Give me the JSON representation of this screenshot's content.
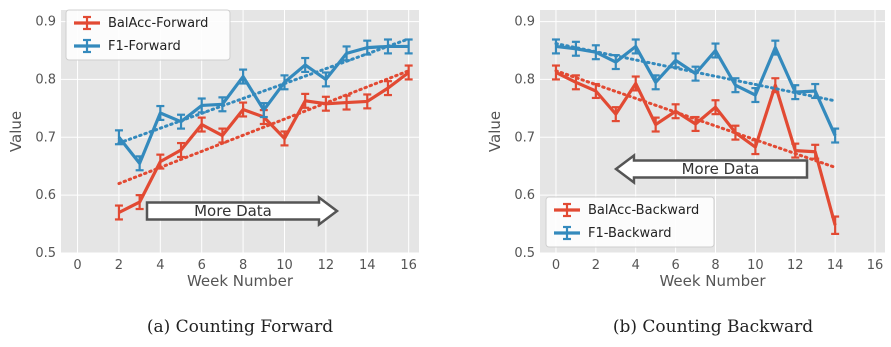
{
  "colors": {
    "red": "#e24a33",
    "blue": "#348abd",
    "panel_bg": "#e5e5e5",
    "grid": "#ffffff"
  },
  "chart_data": [
    {
      "type": "line",
      "caption": "(a) Counting Forward",
      "xlabel": "Week Number",
      "ylabel": "Value",
      "xlim": [
        -0.8,
        16.5
      ],
      "ylim": [
        0.5,
        0.92
      ],
      "xticks": [
        0,
        2,
        4,
        6,
        8,
        10,
        12,
        14,
        16
      ],
      "yticks": [
        0.5,
        0.6,
        0.7,
        0.8,
        0.9
      ],
      "grid": true,
      "legend_position": "top-left",
      "annotation": {
        "text": "More Data",
        "direction": "right"
      },
      "series": [
        {
          "name": "BalAcc-Forward",
          "color": "red",
          "x": [
            2,
            3,
            4,
            5,
            6,
            7,
            8,
            9,
            10,
            11,
            12,
            13,
            14,
            15,
            16
          ],
          "values": [
            0.57,
            0.588,
            0.658,
            0.678,
            0.722,
            0.703,
            0.748,
            0.735,
            0.698,
            0.763,
            0.758,
            0.76,
            0.762,
            0.785,
            0.812
          ],
          "error": [
            0.012,
            0.012,
            0.012,
            0.012,
            0.012,
            0.012,
            0.012,
            0.012,
            0.012,
            0.012,
            0.012,
            0.012,
            0.012,
            0.012,
            0.012
          ],
          "trend": [
            0.62,
            0.815
          ]
        },
        {
          "name": "F1-Forward",
          "color": "blue",
          "x": [
            2,
            3,
            4,
            5,
            6,
            7,
            8,
            9,
            10,
            11,
            12,
            13,
            14,
            15,
            16
          ],
          "values": [
            0.7,
            0.655,
            0.742,
            0.727,
            0.755,
            0.757,
            0.805,
            0.747,
            0.795,
            0.825,
            0.8,
            0.845,
            0.855,
            0.857,
            0.857
          ],
          "error": [
            0.012,
            0.012,
            0.012,
            0.012,
            0.012,
            0.012,
            0.012,
            0.012,
            0.012,
            0.012,
            0.012,
            0.012,
            0.012,
            0.012,
            0.012
          ],
          "trend": [
            0.69,
            0.87
          ]
        }
      ]
    },
    {
      "type": "line",
      "caption": "(b) Counting Backward",
      "xlabel": "Week Number",
      "ylabel": "Value",
      "xlim": [
        -0.8,
        16.5
      ],
      "ylim": [
        0.5,
        0.92
      ],
      "xticks": [
        0,
        2,
        4,
        6,
        8,
        10,
        12,
        14,
        16
      ],
      "yticks": [
        0.5,
        0.6,
        0.7,
        0.8,
        0.9
      ],
      "grid": true,
      "legend_position": "bottom-left",
      "annotation": {
        "text": "More Data",
        "direction": "left"
      },
      "series": [
        {
          "name": "BalAcc-Backward",
          "color": "red",
          "x": [
            0,
            1,
            2,
            3,
            4,
            5,
            6,
            7,
            8,
            9,
            10,
            11,
            12,
            13,
            14
          ],
          "values": [
            0.812,
            0.795,
            0.78,
            0.74,
            0.793,
            0.722,
            0.745,
            0.723,
            0.752,
            0.708,
            0.683,
            0.79,
            0.677,
            0.675,
            0.548
          ],
          "error": [
            0.012,
            0.012,
            0.012,
            0.012,
            0.012,
            0.012,
            0.012,
            0.012,
            0.012,
            0.012,
            0.012,
            0.012,
            0.012,
            0.012,
            0.015
          ],
          "trend": [
            0.815,
            0.648
          ]
        },
        {
          "name": "F1-Backward",
          "color": "blue",
          "x": [
            0,
            1,
            2,
            3,
            4,
            5,
            6,
            7,
            8,
            9,
            10,
            11,
            12,
            13,
            14
          ],
          "values": [
            0.857,
            0.853,
            0.847,
            0.83,
            0.857,
            0.795,
            0.833,
            0.81,
            0.85,
            0.79,
            0.773,
            0.855,
            0.778,
            0.78,
            0.703
          ],
          "error": [
            0.012,
            0.012,
            0.012,
            0.012,
            0.012,
            0.012,
            0.012,
            0.012,
            0.012,
            0.012,
            0.012,
            0.012,
            0.012,
            0.012,
            0.012
          ],
          "trend": [
            0.862,
            0.763
          ]
        }
      ]
    }
  ]
}
